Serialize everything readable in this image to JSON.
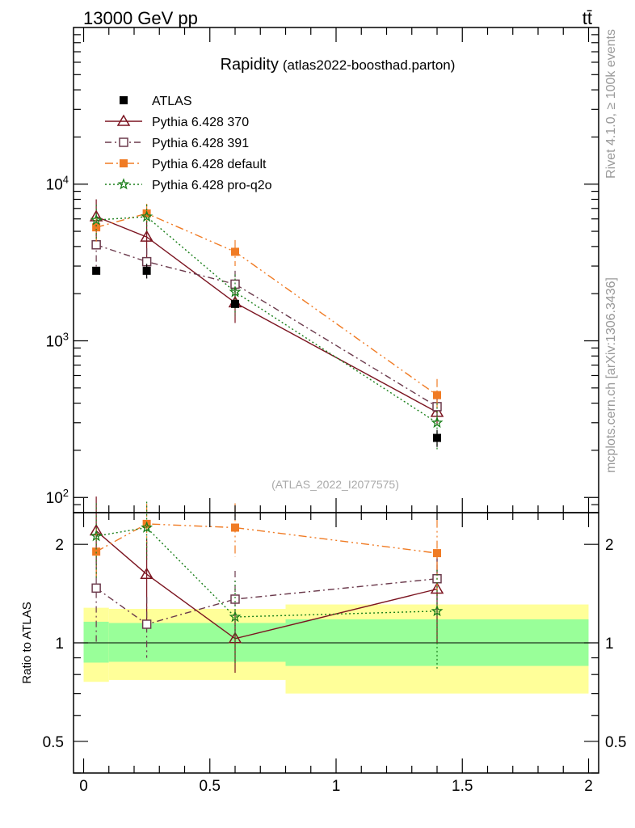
{
  "header": {
    "left": "13000 GeV pp",
    "right": "tt̄"
  },
  "side_texts": {
    "rivet": "Rivet 4.1.0, ≥ 100k events",
    "mcplots": "mcplots.cern.ch [arXiv:1306.3436]"
  },
  "watermark": "(ATLAS_2022_I2077575)",
  "chart_data": [
    {
      "type": "line",
      "panel": "main",
      "title": "Rapidity",
      "subtitle": "(atlas2022-boosthad.parton)",
      "xlabel": "",
      "ylabel": "",
      "yscale": "log",
      "xlim": [
        -0.04,
        2.04
      ],
      "ylim": [
        80,
        100000
      ],
      "y_tick_labels": [
        "10^2",
        "10^3",
        "10^4"
      ],
      "x": [
        0.05,
        0.25,
        0.6,
        1.4
      ],
      "legend_position": "top-left",
      "series": [
        {
          "name": "ATLAS",
          "color": "#000000",
          "marker": "square-filled",
          "line": "none",
          "values": [
            2800,
            2800,
            1720,
            240
          ],
          "err_lo": [
            0,
            300,
            0,
            30
          ],
          "err_hi": [
            0,
            300,
            0,
            30
          ]
        },
        {
          "name": "Pythia 6.428 370",
          "color": "#7b1420",
          "marker": "triangle-open",
          "line": "solid",
          "values": [
            6200,
            4600,
            1750,
            350
          ],
          "err_lo": [
            1800,
            1300,
            450,
            60
          ],
          "err_hi": [
            1800,
            1300,
            450,
            60
          ]
        },
        {
          "name": "Pythia 6.428 391",
          "color": "#6b3a4c",
          "marker": "square-open",
          "line": "dashdot",
          "values": [
            4100,
            3200,
            2300,
            380
          ],
          "err_lo": [
            1300,
            700,
            500,
            70
          ],
          "err_hi": [
            1300,
            700,
            500,
            70
          ]
        },
        {
          "name": "Pythia 6.428 default",
          "color": "#f07b24",
          "marker": "square-filled",
          "line": "dashdotdot",
          "values": [
            5300,
            6500,
            3700,
            450
          ],
          "err_lo": [
            1000,
            1000,
            700,
            120
          ],
          "err_hi": [
            1000,
            1000,
            700,
            120
          ]
        },
        {
          "name": "Pythia 6.428 pro-q2o",
          "color": "#1a7f1a",
          "marker": "star",
          "line": "dotted",
          "values": [
            5900,
            6200,
            2050,
            300
          ],
          "err_lo": [
            1500,
            1200,
            600,
            100
          ],
          "err_hi": [
            1500,
            1200,
            600,
            100
          ]
        }
      ]
    },
    {
      "type": "line",
      "panel": "ratio",
      "ylabel": "Ratio to ATLAS",
      "yscale": "log",
      "xlim": [
        -0.04,
        2.04
      ],
      "ylim": [
        0.4,
        2.5
      ],
      "x_tick_labels": [
        "0",
        "0.5",
        "1",
        "1.5",
        "2"
      ],
      "y_tick_labels": [
        "0.5",
        "1",
        "2"
      ],
      "bands": {
        "edges": [
          0,
          0.1,
          0.4,
          0.8,
          2
        ],
        "inner_color": "#99ff99",
        "outer_color": "#ffff99",
        "inner_lo": [
          0.87,
          0.875,
          0.875,
          0.85
        ],
        "inner_hi": [
          1.16,
          1.15,
          1.15,
          1.18
        ],
        "outer_lo": [
          0.76,
          0.77,
          0.77,
          0.7
        ],
        "outer_hi": [
          1.28,
          1.27,
          1.27,
          1.31
        ]
      },
      "x": [
        0.05,
        0.25,
        0.6,
        1.4
      ],
      "series": [
        {
          "name": "Pythia 6.428 370",
          "values": [
            2.2,
            1.62,
            1.03,
            1.46
          ],
          "err_lo": [
            0.6,
            0.45,
            0.22,
            0.46
          ],
          "err_hi": [
            0.6,
            0.45,
            0.22,
            0.46
          ]
        },
        {
          "name": "Pythia 6.428 391",
          "values": [
            1.47,
            1.14,
            1.36,
            1.57
          ],
          "err_lo": [
            0.48,
            0.24,
            0.3,
            0.35
          ],
          "err_hi": [
            0.48,
            0.24,
            0.3,
            0.35
          ]
        },
        {
          "name": "Pythia 6.428 default",
          "values": [
            1.9,
            2.31,
            2.25,
            1.88
          ],
          "err_lo": [
            0.35,
            0.35,
            0.42,
            0.5
          ],
          "err_hi": [
            0.35,
            0.35,
            0.42,
            0.5
          ]
        },
        {
          "name": "Pythia 6.428 pro-q2o",
          "values": [
            2.12,
            2.25,
            1.2,
            1.25
          ],
          "err_lo": [
            0.55,
            0.45,
            0.35,
            0.42
          ],
          "err_hi": [
            0.55,
            0.45,
            0.35,
            0.42
          ]
        }
      ]
    }
  ]
}
